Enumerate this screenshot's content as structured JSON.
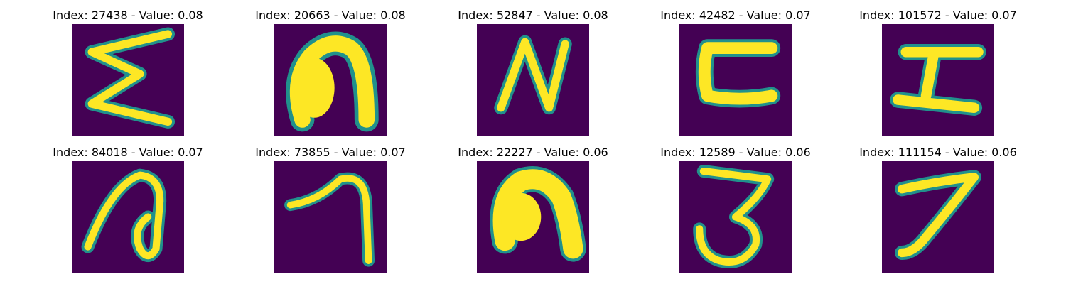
{
  "colors": {
    "background": "#440154",
    "mid": "#21918c",
    "foreground": "#fde725"
  },
  "items": [
    {
      "title": "Index: 27438 - Value: 0.08",
      "depicts": "handwritten zigzag resembling Σ"
    },
    {
      "title": "Index: 20663 - Value: 0.08",
      "depicts": "handwritten arch resembling n"
    },
    {
      "title": "Index: 52847 - Value: 0.08",
      "depicts": "handwritten N"
    },
    {
      "title": "Index: 42482 - Value: 0.07",
      "depicts": "handwritten bracket resembling ⊏"
    },
    {
      "title": "Index: 101572 - Value: 0.07",
      "depicts": "handwritten shape resembling I / Σ"
    },
    {
      "title": "Index: 84018 - Value: 0.07",
      "depicts": "handwritten loop resembling a or ∂"
    },
    {
      "title": "Index: 73855 - Value: 0.07",
      "depicts": "handwritten 1 / 7"
    },
    {
      "title": "Index: 22227 - Value: 0.06",
      "depicts": "handwritten thick arch resembling n"
    },
    {
      "title": "Index: 12589 - Value: 0.06",
      "depicts": "handwritten 3"
    },
    {
      "title": "Index: 111154 - Value: 0.06",
      "depicts": "handwritten 7"
    }
  ]
}
